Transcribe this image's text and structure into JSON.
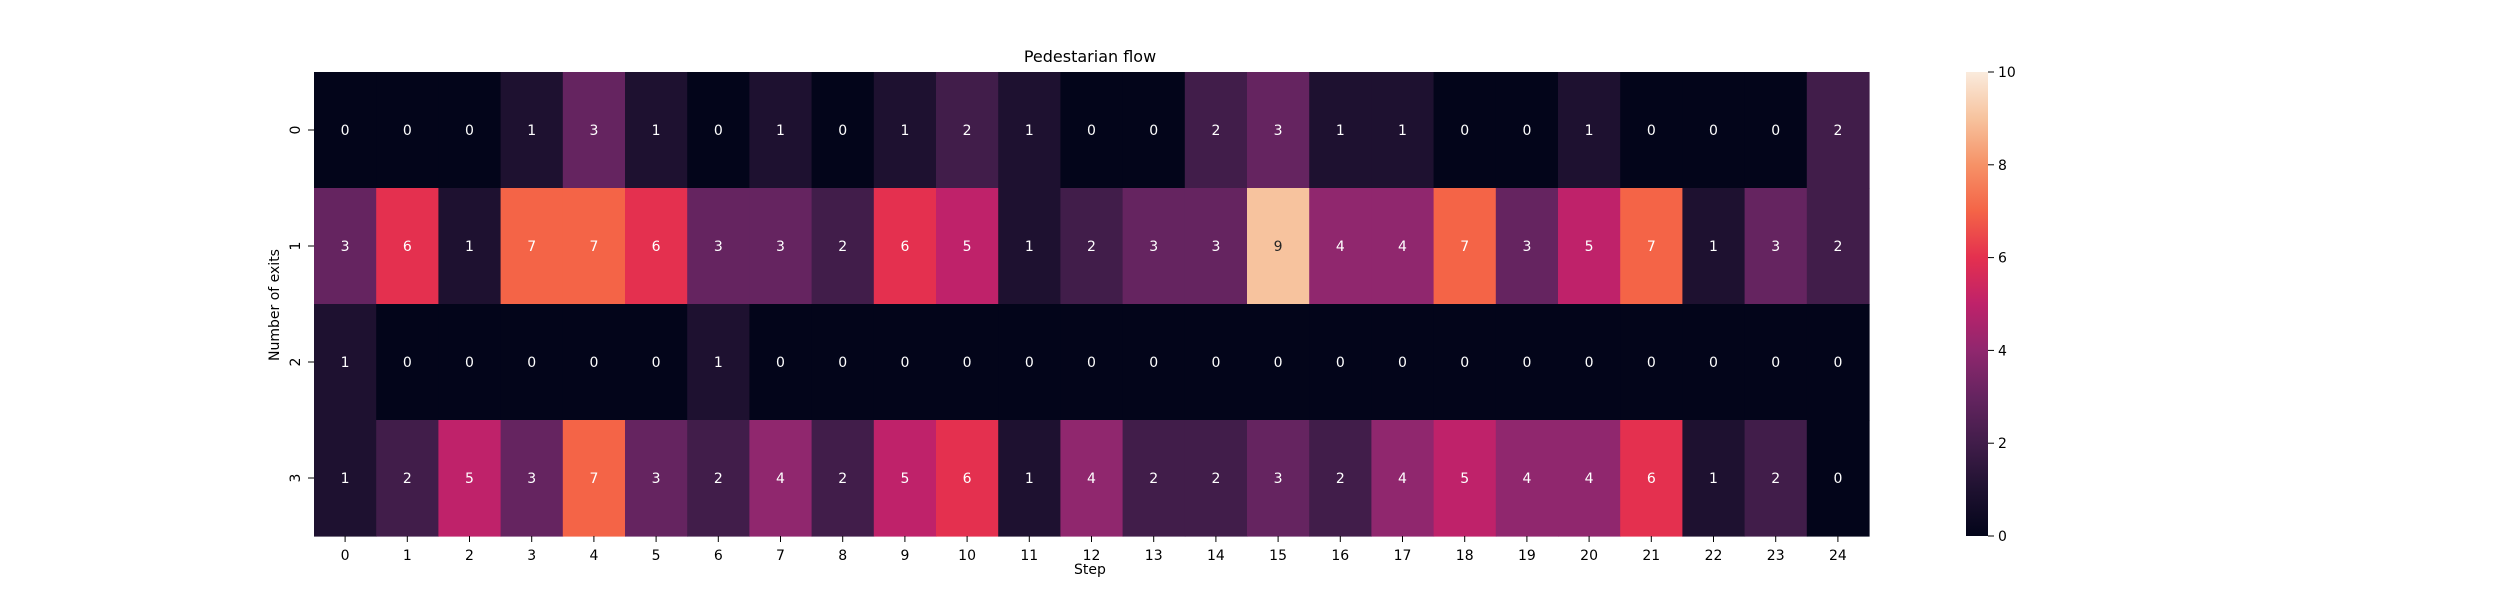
{
  "chart_data": {
    "type": "heatmap",
    "title": "Pedestarian flow",
    "xlabel": "Step",
    "ylabel": "Number of exits",
    "x_categories": [
      "0",
      "1",
      "2",
      "3",
      "4",
      "5",
      "6",
      "7",
      "8",
      "9",
      "10",
      "11",
      "12",
      "13",
      "14",
      "15",
      "16",
      "17",
      "18",
      "19",
      "20",
      "21",
      "22",
      "23",
      "24"
    ],
    "y_categories": [
      "0",
      "1",
      "2",
      "3"
    ],
    "values": [
      [
        0,
        0,
        0,
        1,
        3,
        1,
        0,
        1,
        0,
        1,
        2,
        1,
        0,
        0,
        2,
        3,
        1,
        1,
        0,
        0,
        1,
        0,
        0,
        0,
        2
      ],
      [
        3,
        6,
        1,
        7,
        7,
        6,
        3,
        3,
        2,
        6,
        5,
        1,
        2,
        3,
        3,
        9,
        4,
        4,
        7,
        3,
        5,
        7,
        1,
        3,
        2
      ],
      [
        1,
        0,
        0,
        0,
        0,
        0,
        1,
        0,
        0,
        0,
        0,
        0,
        0,
        0,
        0,
        0,
        0,
        0,
        0,
        0,
        0,
        0,
        0,
        0,
        0
      ],
      [
        1,
        2,
        5,
        3,
        7,
        3,
        2,
        4,
        2,
        5,
        6,
        1,
        4,
        2,
        2,
        3,
        2,
        4,
        5,
        4,
        4,
        6,
        1,
        2,
        0
      ]
    ],
    "colorbar": {
      "vmin": 0,
      "vmax": 10,
      "ticks": [
        "0",
        "2",
        "4",
        "6",
        "8",
        "10"
      ],
      "colormap": "rocket"
    }
  }
}
